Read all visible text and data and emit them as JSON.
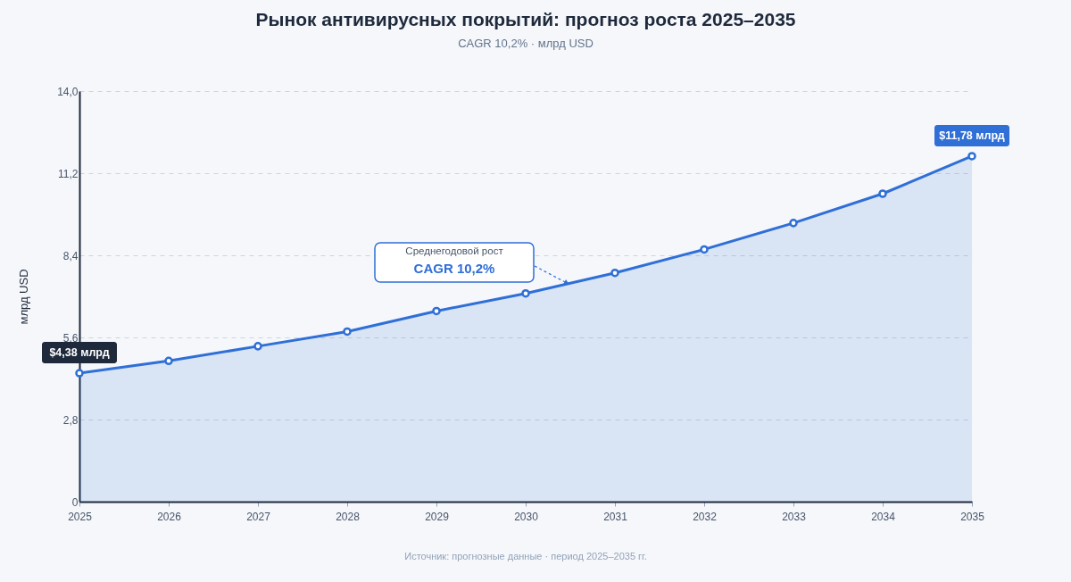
{
  "chart_data": {
    "type": "area",
    "title": "Рынок антивирусных покрытий: прогноз роста 2025–2035",
    "subtitle": "CAGR 10,2% · млрд USD",
    "ylabel": "млрд USD",
    "x": [
      2025,
      2026,
      2027,
      2028,
      2029,
      2030,
      2031,
      2032,
      2033,
      2034,
      2035
    ],
    "values": [
      4.38,
      4.8,
      5.3,
      5.8,
      6.5,
      7.1,
      7.8,
      8.6,
      9.5,
      10.5,
      11.78
    ],
    "value_labels": [
      "$4,38 млрд",
      null,
      null,
      null,
      null,
      null,
      null,
      null,
      null,
      null,
      "$11,78 млрд"
    ],
    "color": "#2f6fd6",
    "marker": "circle",
    "grid": "y",
    "xlim": [
      2025,
      2035
    ],
    "xticks": [
      2025,
      2026,
      2027,
      2028,
      2029,
      2030,
      2031,
      2032,
      2033,
      2034,
      2035
    ],
    "ylim": [
      0,
      14
    ],
    "yticks": [
      0,
      {
        "value": 2.8,
        "label": "2,8"
      },
      {
        "value": 5.6,
        "label": "5,6"
      },
      {
        "value": 8.4,
        "label": "8,4"
      },
      {
        "value": 11.2,
        "label": "11,2"
      },
      {
        "value": 14,
        "label": "14,0"
      }
    ],
    "annotations": [
      "Среднегодовой рост",
      "CAGR 10,2%",
      "Источник: прогнозные данные · период 2025–2035 гг."
    ]
  }
}
